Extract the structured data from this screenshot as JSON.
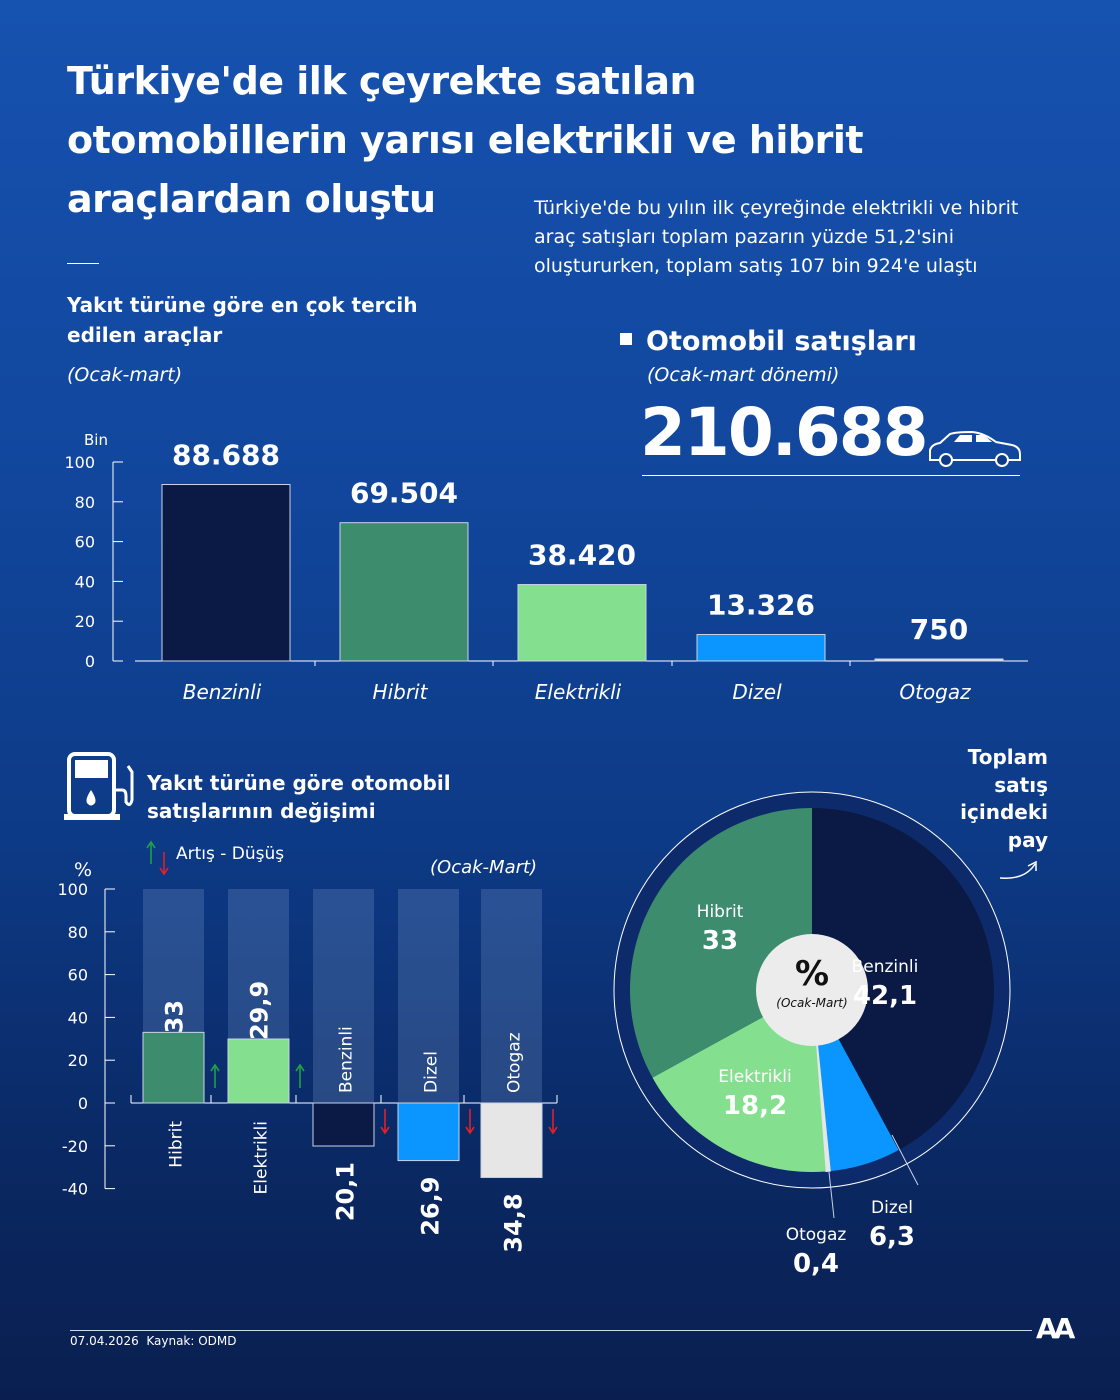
{
  "header": {
    "title": "Türkiye'de ilk çeyrekte satılan otomobillerin yarısı elektrikli ve hibrit araçlardan oluştu",
    "description": "Türkiye'de bu yılın ilk çeyreğinde elektrikli ve hibrit araç satışları toplam pazarın yüzde 51,2'sini oluştururken, toplam satış 107 bin 924'e ulaştı"
  },
  "sales": {
    "title": "Otomobil satışları",
    "period": "(Ocak-mart dönemi)",
    "total": "210.688",
    "icon": "car-icon"
  },
  "colors": {
    "benzinli": "#0b1a45",
    "hibrit": "#3d8c6e",
    "elektrikli": "#84e08f",
    "dizel": "#0a95ff",
    "otogaz": "#e6e6e6",
    "up": "#1fa04a",
    "down": "#e0202a"
  },
  "chart_data": [
    {
      "type": "bar",
      "title": "Yakıt türüne göre en çok tercih edilen araçlar",
      "subtitle": "(Ocak-mart)",
      "ylabel": "Bin",
      "ylim": [
        0,
        100
      ],
      "yticks": [
        "0",
        "20",
        "40",
        "60",
        "80",
        "100"
      ],
      "categories": [
        "Benzinli",
        "Hibrit",
        "Elektrikli",
        "Dizel",
        "Otogaz"
      ],
      "values": [
        88688,
        69504,
        38420,
        13326,
        750
      ],
      "labels": [
        "88.688",
        "69.504",
        "38.420",
        "13.326",
        "750"
      ]
    },
    {
      "type": "bar",
      "title": "Yakıt türüne göre otomobil satışlarının değişimi",
      "legend": "Artış - Düşüş",
      "subtitle": "(Ocak-Mart)",
      "ylabel": "%",
      "ylim": [
        -40,
        100
      ],
      "yticks": [
        "-40",
        "-20",
        "0",
        "20",
        "40",
        "60",
        "80",
        "100"
      ],
      "categories": [
        "Hibrit",
        "Elektrikli",
        "Benzinli",
        "Dizel",
        "Otogaz"
      ],
      "values": [
        33,
        29.9,
        -20.1,
        -26.9,
        -34.8
      ],
      "labels": [
        "33",
        "29,9",
        "20,1",
        "26,9",
        "34,8"
      ],
      "icon": "fuel-pump-icon"
    },
    {
      "type": "pie",
      "title": "Toplam satış içindeki pay",
      "center_symbol": "%",
      "center_label": "(Ocak-Mart)",
      "categories": [
        "Benzinli",
        "Dizel",
        "Otogaz",
        "Elektrikli",
        "Hibrit"
      ],
      "values": [
        42.1,
        6.3,
        0.4,
        18.2,
        33
      ],
      "labels": [
        "42,1",
        "6,3",
        "0,4",
        "18,2",
        "33"
      ]
    }
  ],
  "footer": {
    "date": "07.04.2026",
    "source": "Kaynak: ODMD",
    "logo": "AA"
  }
}
